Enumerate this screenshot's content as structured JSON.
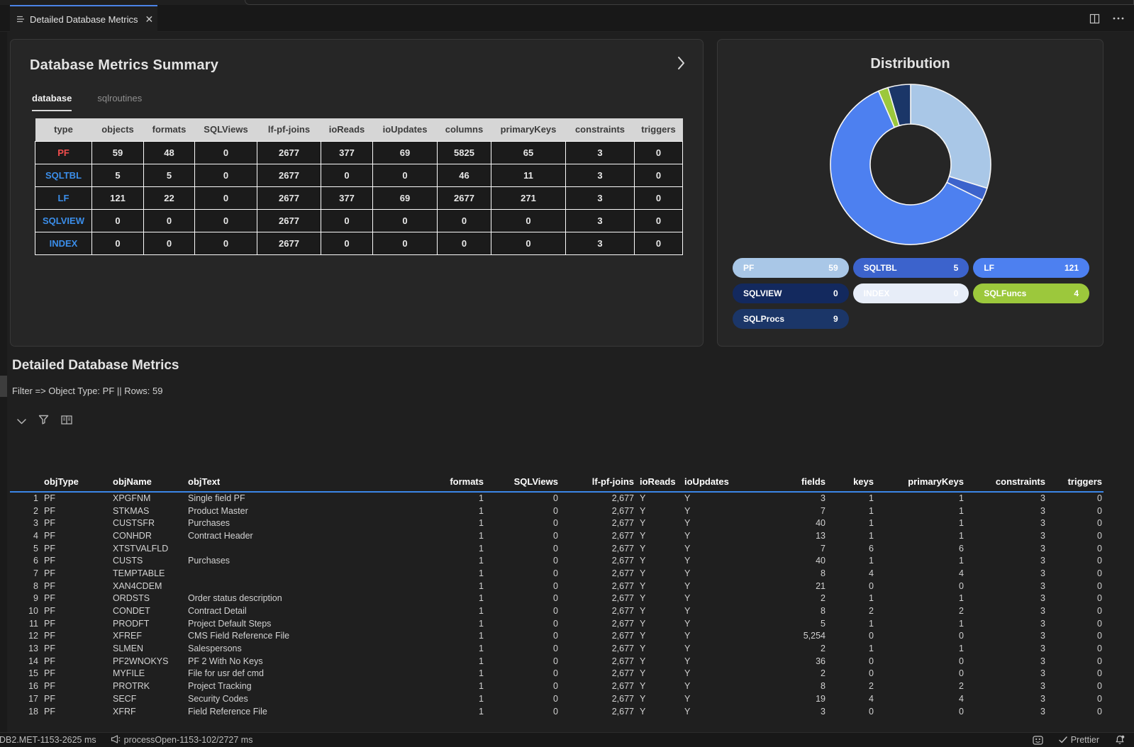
{
  "window": {
    "tab_title": "Detailed Database Metrics"
  },
  "summary": {
    "title": "Database Metrics Summary",
    "tabs": {
      "0": "database",
      "1": "sqlroutines"
    },
    "active_tab": "database",
    "table": {
      "headers": [
        "type",
        "objects",
        "formats",
        "SQLViews",
        "lf-pf-joins",
        "ioReads",
        "ioUpdates",
        "columns",
        "primaryKeys",
        "constraints",
        "triggers"
      ],
      "rows": [
        {
          "type": "PF",
          "type_color": "#f14c4c",
          "values": [
            "59",
            "48",
            "0",
            "2677",
            "377",
            "69",
            "5825",
            "65",
            "3",
            "0"
          ]
        },
        {
          "type": "SQLTBL",
          "type_color": "#3b8eea",
          "values": [
            "5",
            "5",
            "0",
            "2677",
            "0",
            "0",
            "46",
            "11",
            "3",
            "0"
          ]
        },
        {
          "type": "LF",
          "type_color": "#3b8eea",
          "values": [
            "121",
            "22",
            "0",
            "2677",
            "377",
            "69",
            "2677",
            "271",
            "3",
            "0"
          ]
        },
        {
          "type": "SQLVIEW",
          "type_color": "#3b8eea",
          "values": [
            "0",
            "0",
            "0",
            "2677",
            "0",
            "0",
            "0",
            "0",
            "3",
            "0"
          ]
        },
        {
          "type": "INDEX",
          "type_color": "#3b8eea",
          "values": [
            "0",
            "0",
            "0",
            "2677",
            "0",
            "0",
            "0",
            "0",
            "3",
            "0"
          ]
        }
      ]
    }
  },
  "chart_data": {
    "type": "pie",
    "subtype": "donut",
    "title": "Distribution",
    "categories": [
      "PF",
      "SQLTBL",
      "LF",
      "SQLVIEW",
      "INDEX",
      "SQLFuncs",
      "SQLProcs"
    ],
    "values": [
      59,
      5,
      121,
      0,
      0,
      4,
      9
    ],
    "colors": [
      "#a9c7e7",
      "#3c63cc",
      "#4d80f0",
      "#13295e",
      "#e7edf8",
      "#9cc83c",
      "#1b3668"
    ],
    "legend_position": "bottom",
    "legend": [
      {
        "label": "PF",
        "value": "59"
      },
      {
        "label": "SQLTBL",
        "value": "5"
      },
      {
        "label": "LF",
        "value": "121"
      },
      {
        "label": "SQLVIEW",
        "value": "0"
      },
      {
        "label": "INDEX",
        "value": "0"
      },
      {
        "label": "SQLFuncs",
        "value": "4"
      },
      {
        "label": "SQLProcs",
        "value": "9"
      }
    ]
  },
  "detail": {
    "title": "Detailed Database Metrics",
    "filter_text": "Filter => Object Type: PF || Rows: 59",
    "table": {
      "headers": [
        "objType",
        "objName",
        "objText",
        "formats",
        "SQLViews",
        "lf-pf-joins",
        "ioReads",
        "ioUpdates",
        "fields",
        "keys",
        "primaryKeys",
        "constraints",
        "triggers"
      ],
      "rows": [
        [
          "1",
          "PF",
          "XPGFNM",
          "Single field PF",
          "1",
          "0",
          "2,677",
          "Y",
          "Y",
          "3",
          "1",
          "1",
          "3",
          "0"
        ],
        [
          "2",
          "PF",
          "STKMAS",
          "Product Master",
          "1",
          "0",
          "2,677",
          "Y",
          "Y",
          "7",
          "1",
          "1",
          "3",
          "0"
        ],
        [
          "3",
          "PF",
          "CUSTSFR",
          "Purchases",
          "1",
          "0",
          "2,677",
          "Y",
          "Y",
          "40",
          "1",
          "1",
          "3",
          "0"
        ],
        [
          "4",
          "PF",
          "CONHDR",
          "Contract Header",
          "1",
          "0",
          "2,677",
          "Y",
          "Y",
          "13",
          "1",
          "1",
          "3",
          "0"
        ],
        [
          "5",
          "PF",
          "XTSTVALFLD",
          "",
          "1",
          "0",
          "2,677",
          "Y",
          "Y",
          "7",
          "6",
          "6",
          "3",
          "0"
        ],
        [
          "6",
          "PF",
          "CUSTS",
          "Purchases",
          "1",
          "0",
          "2,677",
          "Y",
          "Y",
          "40",
          "1",
          "1",
          "3",
          "0"
        ],
        [
          "7",
          "PF",
          "TEMPTABLE",
          "",
          "1",
          "0",
          "2,677",
          "Y",
          "Y",
          "8",
          "4",
          "4",
          "3",
          "0"
        ],
        [
          "8",
          "PF",
          "XAN4CDEM",
          "",
          "1",
          "0",
          "2,677",
          "Y",
          "Y",
          "21",
          "0",
          "0",
          "3",
          "0"
        ],
        [
          "9",
          "PF",
          "ORDSTS",
          "Order status description",
          "1",
          "0",
          "2,677",
          "Y",
          "Y",
          "2",
          "1",
          "1",
          "3",
          "0"
        ],
        [
          "10",
          "PF",
          "CONDET",
          "Contract Detail",
          "1",
          "0",
          "2,677",
          "Y",
          "Y",
          "8",
          "2",
          "2",
          "3",
          "0"
        ],
        [
          "11",
          "PF",
          "PRODFT",
          "Project Default Steps",
          "1",
          "0",
          "2,677",
          "Y",
          "Y",
          "5",
          "1",
          "1",
          "3",
          "0"
        ],
        [
          "12",
          "PF",
          "XFREF",
          "CMS Field Reference File",
          "1",
          "0",
          "2,677",
          "Y",
          "Y",
          "5,254",
          "0",
          "0",
          "3",
          "0"
        ],
        [
          "13",
          "PF",
          "SLMEN",
          "Salespersons",
          "1",
          "0",
          "2,677",
          "Y",
          "Y",
          "2",
          "1",
          "1",
          "3",
          "0"
        ],
        [
          "14",
          "PF",
          "PF2WNOKYS",
          "PF 2 With No Keys",
          "1",
          "0",
          "2,677",
          "Y",
          "Y",
          "36",
          "0",
          "0",
          "3",
          "0"
        ],
        [
          "15",
          "PF",
          "MYFILE",
          "File for usr def cmd",
          "1",
          "0",
          "2,677",
          "Y",
          "Y",
          "2",
          "0",
          "0",
          "3",
          "0"
        ],
        [
          "16",
          "PF",
          "PROTRK",
          "Project Tracking",
          "1",
          "0",
          "2,677",
          "Y",
          "Y",
          "8",
          "2",
          "2",
          "3",
          "0"
        ],
        [
          "17",
          "PF",
          "SECF",
          "Security Codes",
          "1",
          "0",
          "2,677",
          "Y",
          "Y",
          "19",
          "4",
          "4",
          "3",
          "0"
        ],
        [
          "18",
          "PF",
          "XFRF",
          "Field Reference File",
          "1",
          "0",
          "2,677",
          "Y",
          "Y",
          "3",
          "0",
          "0",
          "3",
          "0"
        ]
      ]
    }
  },
  "status_bar": {
    "timing1": "DB2.MET-1153-2625 ms",
    "timing2": "processOpen-1153-102/2727 ms",
    "prettier_label": "Prettier"
  },
  "colors": {
    "accent_blue": "#3b86e8",
    "tab_accent": "#4b84e8",
    "pf_red": "#f14c4c",
    "link_blue": "#3b8eea"
  }
}
